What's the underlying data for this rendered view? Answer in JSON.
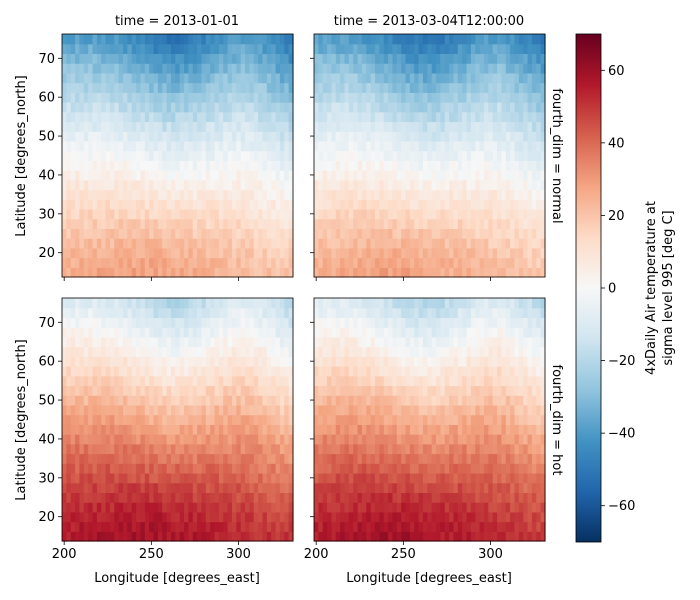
{
  "chart_data": {
    "type": "heatmap",
    "layout": "facet-grid 2x2 with shared colorbar",
    "col_labels": [
      "time = 2013-01-01",
      "time = 2013-03-04T12:00:00"
    ],
    "row_labels": [
      "fourth_dim = normal",
      "fourth_dim = hot"
    ],
    "xlabel": "Longitude [degrees_east]",
    "ylabel": "Latitude [degrees_north]",
    "xlim": [
      198.75,
      331.25
    ],
    "ylim": [
      13.75,
      76.25
    ],
    "x_ticks": [
      200,
      250,
      300
    ],
    "y_ticks": [
      20,
      30,
      40,
      50,
      60,
      70
    ],
    "grid_resolution": {
      "lon_step": 2.5,
      "lat_step": 2.5
    },
    "colorbar": {
      "label_line1": "4xDaily Air temperature at",
      "label_line2": "sigma level 995 [deg C]",
      "range": [
        -70,
        70
      ],
      "ticks": [
        60,
        40,
        20,
        0,
        -20,
        -40,
        -60
      ],
      "tick_labels": [
        "60",
        "40",
        "20",
        "0",
        "−20",
        "−40",
        "−60"
      ],
      "cmap": "RdBu_r",
      "colors": [
        "#053061",
        "#2166ac",
        "#4393c3",
        "#92c5de",
        "#d1e5f0",
        "#f7f7f7",
        "#fddbc7",
        "#f4a582",
        "#d6604d",
        "#b2182b",
        "#67001f"
      ]
    },
    "panels": [
      {
        "row": 0,
        "col": 0,
        "time": "2013-01-01",
        "fourth_dim": "normal",
        "offset": 0,
        "approx_range": [
          -40,
          25
        ]
      },
      {
        "row": 0,
        "col": 1,
        "time": "2013-03-04T12:00:00",
        "fourth_dim": "normal",
        "offset": 0,
        "approx_range": [
          -45,
          25
        ]
      },
      {
        "row": 1,
        "col": 0,
        "time": "2013-01-01",
        "fourth_dim": "hot",
        "offset": 30,
        "approx_range": [
          -10,
          55
        ]
      },
      {
        "row": 1,
        "col": 1,
        "time": "2013-03-04T12:00:00",
        "fourth_dim": "hot",
        "offset": 30,
        "approx_range": [
          -15,
          55
        ]
      }
    ]
  }
}
